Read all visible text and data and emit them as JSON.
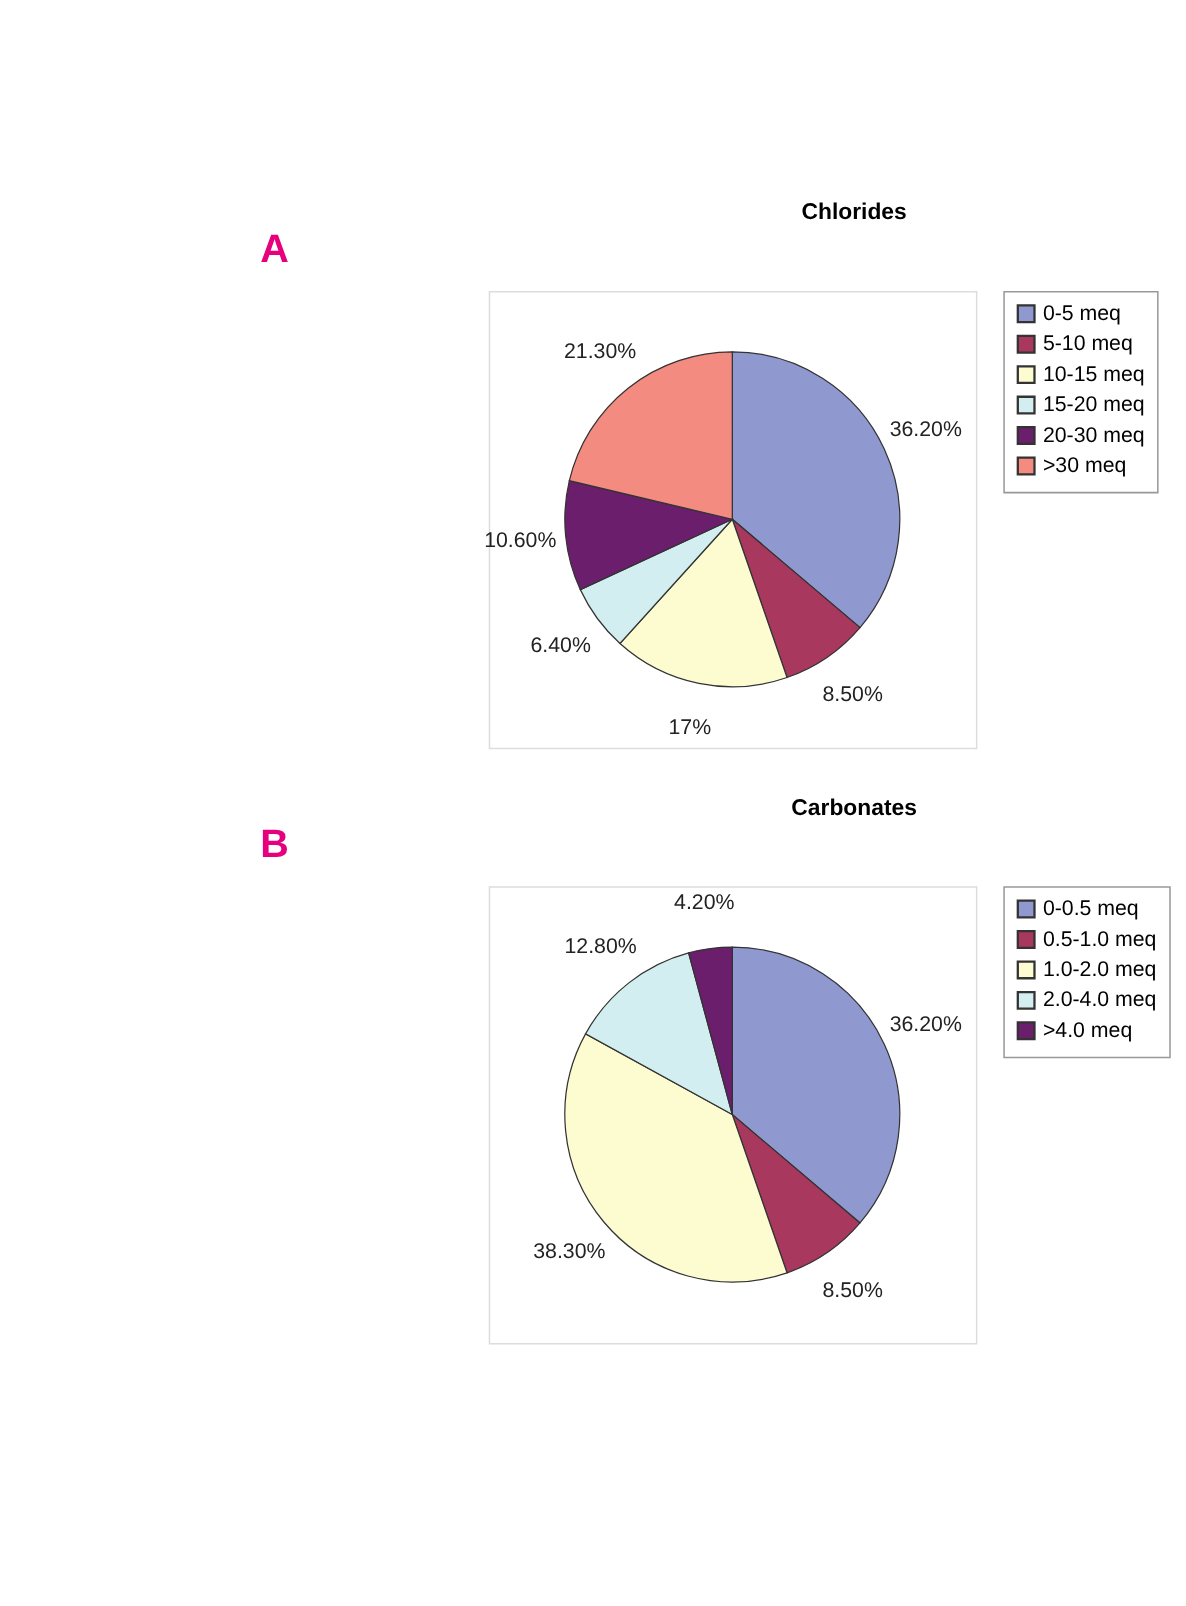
{
  "chart_data": [
    {
      "type": "pie",
      "title": "Chlorides",
      "annotations": [
        "A"
      ],
      "categories": [
        "0-5 meq",
        "5-10 meq",
        "10-15 meq",
        "15-20 meq",
        "20-30 meq",
        ">30 meq"
      ],
      "values": [
        36.2,
        8.5,
        17,
        6.4,
        10.6,
        21.3
      ],
      "value_labels": [
        "36.20%",
        "8.50%",
        "17%",
        "6.40%",
        "10.60%",
        "21.30%"
      ],
      "colors": [
        "#8f99cf",
        "#a8385e",
        "#fdfbd0",
        "#d3eef0",
        "#6b1e6b",
        "#f38b80"
      ],
      "legend": "right"
    },
    {
      "type": "pie",
      "title": "Carbonates",
      "annotations": [
        "B"
      ],
      "categories": [
        "0-0.5 meq",
        "0.5-1.0 meq",
        "1.0-2.0 meq",
        "2.0-4.0 meq",
        ">4.0 meq"
      ],
      "values": [
        36.2,
        8.5,
        38.3,
        12.8,
        4.2
      ],
      "value_labels": [
        "36.20%",
        "8.50%",
        "38.30%",
        "12.80%",
        "4.20%"
      ],
      "colors": [
        "#8f99cf",
        "#a8385e",
        "#fdfbd0",
        "#d3eef0",
        "#6b1e6b"
      ],
      "legend": "right"
    }
  ]
}
